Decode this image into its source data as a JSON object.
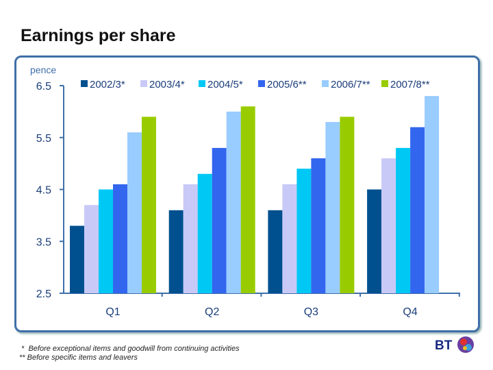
{
  "title": "Earnings per share",
  "footnotes": [
    " *  Before exceptional items and goodwill from continuing activities",
    "** Before specific items and leavers"
  ],
  "logo_text": "BT",
  "chart_data": {
    "type": "bar",
    "ylabel": "pence",
    "ylim": [
      2.5,
      6.5
    ],
    "yticks": [
      "6.5",
      "5.5",
      "4.5",
      "3.5",
      "2.5"
    ],
    "categories": [
      "Q1",
      "Q2",
      "Q3",
      "Q4"
    ],
    "legend_position": "top",
    "grid": false,
    "series": [
      {
        "name": "2002/3*",
        "color": "#00508f",
        "values": [
          3.8,
          4.1,
          4.1,
          4.5
        ]
      },
      {
        "name": "2003/4*",
        "color": "#c9c9f7",
        "values": [
          4.2,
          4.6,
          4.6,
          5.1
        ]
      },
      {
        "name": "2004/5*",
        "color": "#00c8f5",
        "values": [
          4.5,
          4.8,
          4.9,
          5.3
        ]
      },
      {
        "name": "2005/6**",
        "color": "#3366ee",
        "values": [
          4.6,
          5.3,
          5.1,
          5.7
        ]
      },
      {
        "name": "2006/7**",
        "color": "#99ccff",
        "values": [
          5.6,
          6.0,
          5.8,
          6.3
        ]
      },
      {
        "name": "2007/8**",
        "color": "#99cc00",
        "values": [
          5.9,
          6.1,
          5.9,
          null
        ]
      }
    ]
  }
}
